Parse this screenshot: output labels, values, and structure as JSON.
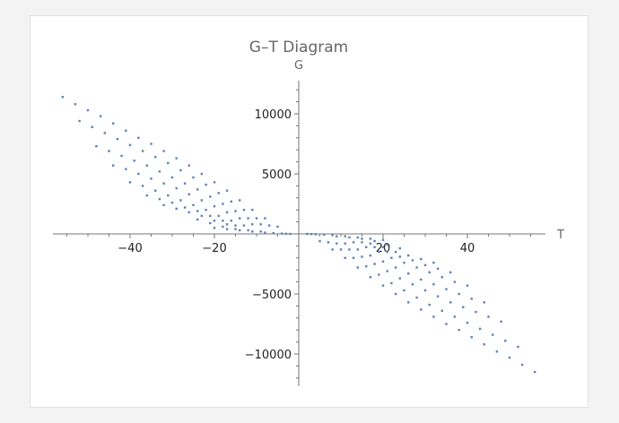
{
  "chart_data": {
    "type": "scatter",
    "title": "G–T Diagram",
    "xlabel": "T",
    "ylabel": "G",
    "xlim": [
      -58,
      57
    ],
    "ylim": [
      -12700,
      12700
    ],
    "x_ticks": [
      -40,
      -20,
      20,
      40
    ],
    "y_ticks": [
      -10000,
      -5000,
      5000,
      10000
    ],
    "x_tick_labels": [
      "−40",
      "−20",
      "20",
      "40"
    ],
    "y_tick_labels": [
      "−10000",
      "−5000",
      "5000",
      "10000"
    ],
    "grid": false,
    "legend": "none",
    "marker_color": "#5e81b5",
    "series": [
      {
        "values": [
          [
            -56,
            11400
          ],
          [
            -53,
            10800
          ],
          [
            -50,
            10300
          ],
          [
            -47,
            9800
          ],
          [
            -44,
            9200
          ],
          [
            -41,
            8600
          ],
          [
            -38,
            8000
          ],
          [
            -35,
            7500
          ],
          [
            -32,
            6900
          ],
          [
            -29,
            6300
          ],
          [
            -26,
            5700
          ],
          [
            -23,
            5000
          ],
          [
            -20,
            4300
          ],
          [
            -17,
            3600
          ],
          [
            -14,
            2800
          ],
          [
            -11,
            2000
          ],
          [
            -8,
            1300
          ],
          [
            -5,
            600
          ],
          [
            -52,
            9400
          ],
          [
            -49,
            8900
          ],
          [
            -46,
            8400
          ],
          [
            -43,
            7900
          ],
          [
            -40,
            7400
          ],
          [
            -37,
            6900
          ],
          [
            -34,
            6400
          ],
          [
            -31,
            5900
          ],
          [
            -28,
            5300
          ],
          [
            -25,
            4700
          ],
          [
            -22,
            4100
          ],
          [
            -19,
            3400
          ],
          [
            -16,
            2700
          ],
          [
            -13,
            2000
          ],
          [
            -10,
            1300
          ],
          [
            -7,
            700
          ],
          [
            -48,
            7300
          ],
          [
            -45,
            6900
          ],
          [
            -42,
            6500
          ],
          [
            -39,
            6100
          ],
          [
            -36,
            5700
          ],
          [
            -33,
            5200
          ],
          [
            -30,
            4700
          ],
          [
            -27,
            4200
          ],
          [
            -24,
            3700
          ],
          [
            -21,
            3100
          ],
          [
            -18,
            2500
          ],
          [
            -15,
            1900
          ],
          [
            -12,
            1300
          ],
          [
            -9,
            800
          ],
          [
            -44,
            5700
          ],
          [
            -41,
            5400
          ],
          [
            -38,
            5000
          ],
          [
            -35,
            4600
          ],
          [
            -32,
            4200
          ],
          [
            -29,
            3800
          ],
          [
            -26,
            3300
          ],
          [
            -23,
            2800
          ],
          [
            -20,
            2300
          ],
          [
            -17,
            1800
          ],
          [
            -14,
            1300
          ],
          [
            -11,
            800
          ],
          [
            -40,
            4300
          ],
          [
            -37,
            4000
          ],
          [
            -34,
            3600
          ],
          [
            -31,
            3200
          ],
          [
            -28,
            2800
          ],
          [
            -25,
            2400
          ],
          [
            -22,
            2000
          ],
          [
            -19,
            1500
          ],
          [
            -16,
            1100
          ],
          [
            -13,
            700
          ],
          [
            -36,
            3200
          ],
          [
            -33,
            2900
          ],
          [
            -30,
            2600
          ],
          [
            -27,
            2200
          ],
          [
            -24,
            1900
          ],
          [
            -21,
            1500
          ],
          [
            -18,
            1100
          ],
          [
            -15,
            700
          ],
          [
            -32,
            2400
          ],
          [
            -29,
            2100
          ],
          [
            -26,
            1800
          ],
          [
            -23,
            1500
          ],
          [
            -20,
            1100
          ],
          [
            -17,
            800
          ],
          [
            -24,
            1200
          ],
          [
            -21,
            900
          ],
          [
            -18,
            600
          ],
          [
            -15,
            400
          ],
          [
            -12,
            300
          ],
          [
            -9,
            200
          ],
          [
            -20,
            500
          ],
          [
            -17,
            400
          ],
          [
            -14,
            300
          ],
          [
            -11,
            200
          ],
          [
            -8,
            100
          ],
          [
            -6,
            60
          ],
          [
            -4,
            30
          ],
          [
            -3,
            10
          ],
          [
            -2,
            0
          ],
          [
            56,
            -11500
          ],
          [
            53,
            -10900
          ],
          [
            50,
            -10300
          ],
          [
            47,
            -9800
          ],
          [
            44,
            -9200
          ],
          [
            41,
            -8600
          ],
          [
            38,
            -8000
          ],
          [
            35,
            -7500
          ],
          [
            32,
            -6900
          ],
          [
            29,
            -6300
          ],
          [
            26,
            -5700
          ],
          [
            23,
            -5000
          ],
          [
            20,
            -4300
          ],
          [
            17,
            -3600
          ],
          [
            14,
            -2800
          ],
          [
            11,
            -2000
          ],
          [
            8,
            -1300
          ],
          [
            5,
            -600
          ],
          [
            52,
            -9400
          ],
          [
            49,
            -8900
          ],
          [
            46,
            -8400
          ],
          [
            43,
            -7900
          ],
          [
            40,
            -7400
          ],
          [
            37,
            -6900
          ],
          [
            34,
            -6400
          ],
          [
            31,
            -5900
          ],
          [
            28,
            -5300
          ],
          [
            25,
            -4700
          ],
          [
            22,
            -4100
          ],
          [
            19,
            -3400
          ],
          [
            16,
            -2700
          ],
          [
            13,
            -2000
          ],
          [
            10,
            -1300
          ],
          [
            7,
            -700
          ],
          [
            48,
            -7300
          ],
          [
            45,
            -6900
          ],
          [
            42,
            -6500
          ],
          [
            39,
            -6100
          ],
          [
            36,
            -5700
          ],
          [
            33,
            -5200
          ],
          [
            30,
            -4700
          ],
          [
            27,
            -4200
          ],
          [
            24,
            -3700
          ],
          [
            21,
            -3100
          ],
          [
            18,
            -2500
          ],
          [
            15,
            -1900
          ],
          [
            12,
            -1300
          ],
          [
            9,
            -800
          ],
          [
            44,
            -5700
          ],
          [
            41,
            -5400
          ],
          [
            38,
            -5000
          ],
          [
            35,
            -4600
          ],
          [
            32,
            -4200
          ],
          [
            29,
            -3800
          ],
          [
            26,
            -3300
          ],
          [
            23,
            -2800
          ],
          [
            20,
            -2300
          ],
          [
            17,
            -1800
          ],
          [
            14,
            -1300
          ],
          [
            11,
            -800
          ],
          [
            40,
            -4300
          ],
          [
            37,
            -4000
          ],
          [
            34,
            -3600
          ],
          [
            31,
            -3200
          ],
          [
            28,
            -2800
          ],
          [
            25,
            -2400
          ],
          [
            22,
            -2000
          ],
          [
            19,
            -1500
          ],
          [
            16,
            -1100
          ],
          [
            13,
            -700
          ],
          [
            36,
            -3200
          ],
          [
            33,
            -2900
          ],
          [
            30,
            -2600
          ],
          [
            27,
            -2200
          ],
          [
            24,
            -1900
          ],
          [
            21,
            -1500
          ],
          [
            18,
            -1100
          ],
          [
            15,
            -700
          ],
          [
            32,
            -2400
          ],
          [
            29,
            -2100
          ],
          [
            26,
            -1800
          ],
          [
            23,
            -1500
          ],
          [
            20,
            -1100
          ],
          [
            17,
            -800
          ],
          [
            24,
            -1200
          ],
          [
            21,
            -900
          ],
          [
            18,
            -600
          ],
          [
            15,
            -400
          ],
          [
            12,
            -300
          ],
          [
            9,
            -200
          ],
          [
            20,
            -500
          ],
          [
            17,
            -400
          ],
          [
            14,
            -300
          ],
          [
            11,
            -200
          ],
          [
            8,
            -100
          ],
          [
            6,
            -60
          ],
          [
            4,
            -30
          ],
          [
            3,
            -10
          ],
          [
            2,
            0
          ]
        ]
      }
    ]
  }
}
